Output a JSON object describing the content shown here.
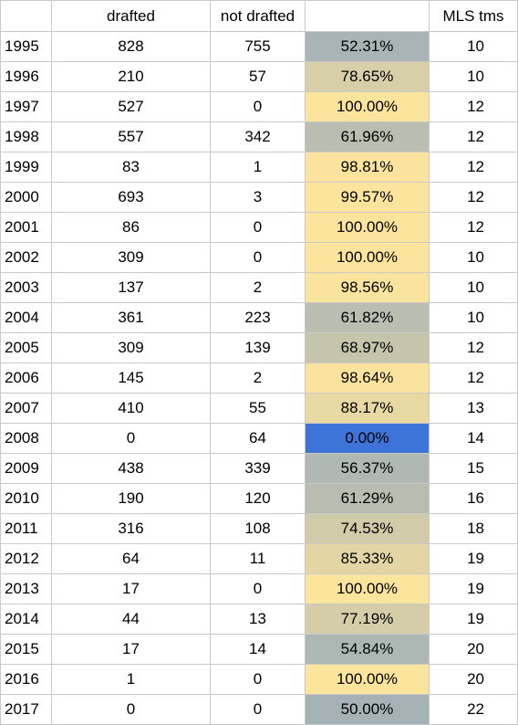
{
  "chart_data": {
    "type": "table",
    "columns": [
      "",
      "drafted",
      "not drafted",
      "",
      "MLS tms"
    ],
    "rows": [
      {
        "year": "1995",
        "drafted": 828,
        "not_drafted": 755,
        "pct": "52.31%",
        "pct_value": 52.31,
        "mls_teams": 10
      },
      {
        "year": "1996",
        "drafted": 210,
        "not_drafted": 57,
        "pct": "78.65%",
        "pct_value": 78.65,
        "mls_teams": 10
      },
      {
        "year": "1997",
        "drafted": 527,
        "not_drafted": 0,
        "pct": "100.00%",
        "pct_value": 100.0,
        "mls_teams": 12
      },
      {
        "year": "1998",
        "drafted": 557,
        "not_drafted": 342,
        "pct": "61.96%",
        "pct_value": 61.96,
        "mls_teams": 12
      },
      {
        "year": "1999",
        "drafted": 83,
        "not_drafted": 1,
        "pct": "98.81%",
        "pct_value": 98.81,
        "mls_teams": 12
      },
      {
        "year": "2000",
        "drafted": 693,
        "not_drafted": 3,
        "pct": "99.57%",
        "pct_value": 99.57,
        "mls_teams": 12
      },
      {
        "year": "2001",
        "drafted": 86,
        "not_drafted": 0,
        "pct": "100.00%",
        "pct_value": 100.0,
        "mls_teams": 12
      },
      {
        "year": "2002",
        "drafted": 309,
        "not_drafted": 0,
        "pct": "100.00%",
        "pct_value": 100.0,
        "mls_teams": 10
      },
      {
        "year": "2003",
        "drafted": 137,
        "not_drafted": 2,
        "pct": "98.56%",
        "pct_value": 98.56,
        "mls_teams": 10
      },
      {
        "year": "2004",
        "drafted": 361,
        "not_drafted": 223,
        "pct": "61.82%",
        "pct_value": 61.82,
        "mls_teams": 10
      },
      {
        "year": "2005",
        "drafted": 309,
        "not_drafted": 139,
        "pct": "68.97%",
        "pct_value": 68.97,
        "mls_teams": 12
      },
      {
        "year": "2006",
        "drafted": 145,
        "not_drafted": 2,
        "pct": "98.64%",
        "pct_value": 98.64,
        "mls_teams": 12
      },
      {
        "year": "2007",
        "drafted": 410,
        "not_drafted": 55,
        "pct": "88.17%",
        "pct_value": 88.17,
        "mls_teams": 13
      },
      {
        "year": "2008",
        "drafted": 0,
        "not_drafted": 64,
        "pct": "0.00%",
        "pct_value": 0.0,
        "mls_teams": 14
      },
      {
        "year": "2009",
        "drafted": 438,
        "not_drafted": 339,
        "pct": "56.37%",
        "pct_value": 56.37,
        "mls_teams": 15
      },
      {
        "year": "2010",
        "drafted": 190,
        "not_drafted": 120,
        "pct": "61.29%",
        "pct_value": 61.29,
        "mls_teams": 16
      },
      {
        "year": "2011",
        "drafted": 316,
        "not_drafted": 108,
        "pct": "74.53%",
        "pct_value": 74.53,
        "mls_teams": 18
      },
      {
        "year": "2012",
        "drafted": 64,
        "not_drafted": 11,
        "pct": "85.33%",
        "pct_value": 85.33,
        "mls_teams": 19
      },
      {
        "year": "2013",
        "drafted": 17,
        "not_drafted": 0,
        "pct": "100.00%",
        "pct_value": 100.0,
        "mls_teams": 19
      },
      {
        "year": "2014",
        "drafted": 44,
        "not_drafted": 13,
        "pct": "77.19%",
        "pct_value": 77.19,
        "mls_teams": 19
      },
      {
        "year": "2015",
        "drafted": 17,
        "not_drafted": 14,
        "pct": "54.84%",
        "pct_value": 54.84,
        "mls_teams": 20
      },
      {
        "year": "2016",
        "drafted": 1,
        "not_drafted": 0,
        "pct": "100.00%",
        "pct_value": 100.0,
        "mls_teams": 20
      },
      {
        "year": "2017",
        "drafted": 0,
        "not_drafted": 0,
        "pct": "50.00%",
        "pct_value": 50.0,
        "mls_teams": 22
      }
    ],
    "color_scale": {
      "min_color": "#3e74d8",
      "mid_color": "#a4b2b6",
      "max_color": "#fde49c",
      "min": 0,
      "mid": 50,
      "max": 100
    },
    "colors": {
      "grid_line": "#c9c9c9",
      "text": "#000000",
      "background": "#ffffff"
    }
  }
}
